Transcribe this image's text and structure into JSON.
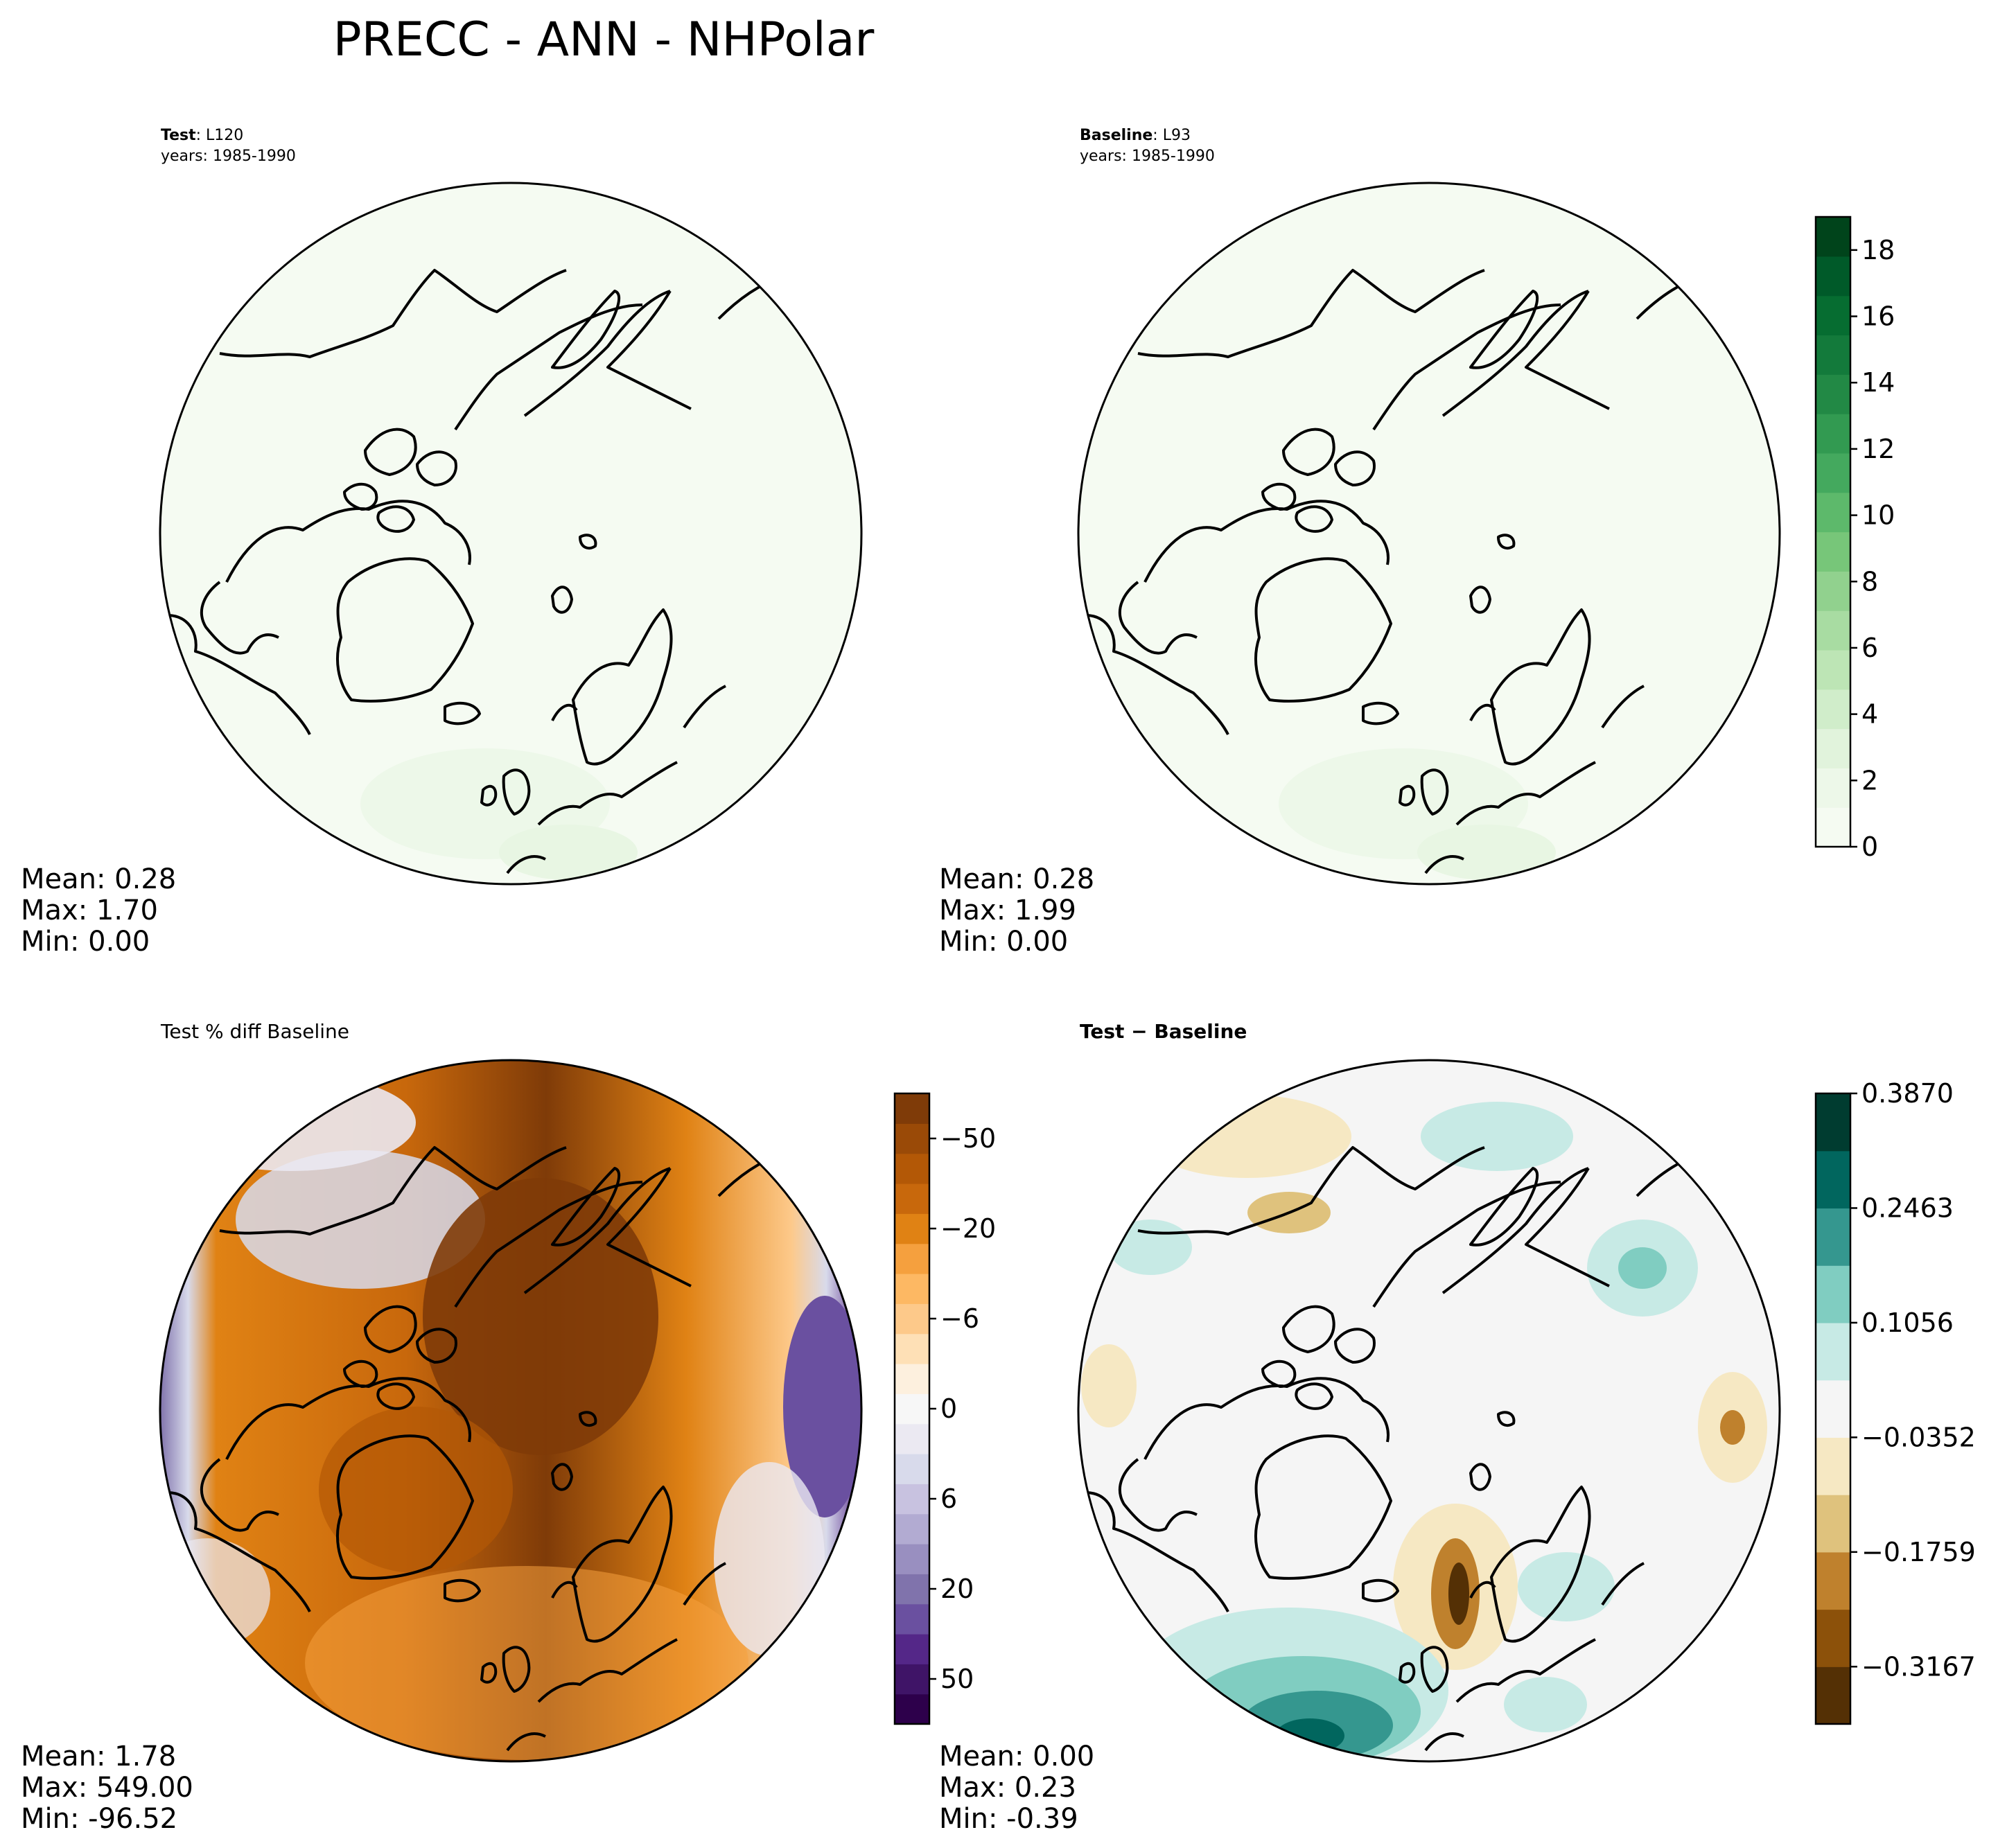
{
  "title": "PRECC - ANN - NHPolar",
  "panels": {
    "test": {
      "label_bold": "Test",
      "label_value": ": L120",
      "years": "years: 1985-1990",
      "stats": {
        "mean": "Mean:  0.28",
        "max": "Max:  1.70",
        "min": "Min:  0.00"
      }
    },
    "baseline": {
      "label_bold": "Baseline",
      "label_value": ": L93",
      "years": "years: 1985-1990",
      "stats": {
        "mean": "Mean:  0.28",
        "max": "Max:  1.99",
        "min": "Min:  0.00"
      }
    },
    "pctdiff": {
      "title": "Test % diff Baseline",
      "stats": {
        "mean": "Mean:  1.78",
        "max": "Max: 549.00",
        "min": "Min: -96.52"
      }
    },
    "diff": {
      "title_bold": "Test − Baseline",
      "stats": {
        "mean": "Mean:  0.00",
        "max": "Max:  0.23",
        "min": "Min: -0.39"
      }
    }
  },
  "colorbars": {
    "greens": {
      "ticks": [
        "0",
        "2",
        "4",
        "6",
        "8",
        "10",
        "12",
        "14",
        "16",
        "18"
      ],
      "colors": [
        "#f5fbf2",
        "#edf8e9",
        "#e1f3dc",
        "#d0edca",
        "#bde5b5",
        "#a8dca2",
        "#91d18e",
        "#77c679",
        "#5db96b",
        "#44a95e",
        "#329a51",
        "#228945",
        "#137a3b",
        "#066d31",
        "#005a29",
        "#00441b"
      ]
    },
    "puor": {
      "ticks": [
        "−50",
        "−20",
        "−6",
        "0",
        "6",
        "20",
        "50"
      ],
      "colors": [
        "#2d004b",
        "#3f1467",
        "#542788",
        "#6a50a0",
        "#8073ac",
        "#998fc0",
        "#b2abd2",
        "#c8c2e0",
        "#d8daeb",
        "#ebe9f2",
        "#f7f7f7",
        "#fdf0de",
        "#fee0b6",
        "#fdc98a",
        "#fdb863",
        "#f5a03e",
        "#e08214",
        "#c8680c",
        "#b35806",
        "#9a4a07",
        "#7f3b08"
      ]
    },
    "brbg": {
      "ticks": [
        "0.3870",
        "0.2463",
        "0.1056",
        "−0.0352",
        "−0.1759",
        "−0.3167"
      ],
      "colors": [
        "#003c30",
        "#01665e",
        "#35978f",
        "#80cdc1",
        "#c7eae5",
        "#f5f5f5",
        "#f6e8c3",
        "#dfc27d",
        "#bf812d",
        "#8c510a",
        "#543005"
      ]
    }
  }
}
